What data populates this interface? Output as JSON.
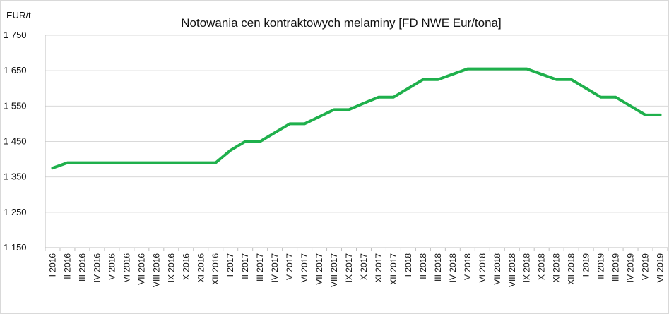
{
  "chart_data": {
    "type": "line",
    "title": "Notowania cen kontraktowych melaminy [FD NWE Eur/tona]",
    "ylabel": "EUR/t",
    "xlabel": "",
    "categories": [
      "I 2016",
      "II 2016",
      "III 2016",
      "IV 2016",
      "V 2016",
      "VI 2016",
      "VII 2016",
      "VIII 2016",
      "IX 2016",
      "X 2016",
      "XI 2016",
      "XII 2016",
      "I 2017",
      "II 2017",
      "III 2017",
      "IV 2017",
      "V 2017",
      "VI 2017",
      "VII 2017",
      "VIII 2017",
      "IX 2017",
      "X 2017",
      "XI 2017",
      "XII 2017",
      "I 2018",
      "II 2018",
      "III 2018",
      "IV 2018",
      "V 2018",
      "VI 2018",
      "VII 2018",
      "VIII 2018",
      "IX 2018",
      "X 2018",
      "XI 2018",
      "XII 2018",
      "I 2019",
      "II 2019",
      "III 2019",
      "IV 2019",
      "V 2019",
      "VI 2019"
    ],
    "series": [
      {
        "values": [
          1375,
          1390,
          1390,
          1390,
          1390,
          1390,
          1390,
          1390,
          1390,
          1390,
          1390,
          1390,
          1425,
          1450,
          1450,
          1475,
          1500,
          1500,
          1520,
          1540,
          1540,
          1558,
          1575,
          1575,
          1600,
          1625,
          1625,
          1640,
          1655,
          1655,
          1655,
          1655,
          1655,
          1640,
          1625,
          1625,
          1600,
          1575,
          1575,
          1550,
          1525,
          1525
        ],
        "color": "#1fb04c"
      }
    ],
    "yticks": [
      "1 750",
      "1 650",
      "1 550",
      "1 450",
      "1 350",
      "1 250",
      "1 150"
    ],
    "ylim": [
      1150,
      1750
    ],
    "ytick_step": 100,
    "grid": true,
    "grid_color": "#d9d9d9",
    "axis_color": "#bfbfbf"
  }
}
